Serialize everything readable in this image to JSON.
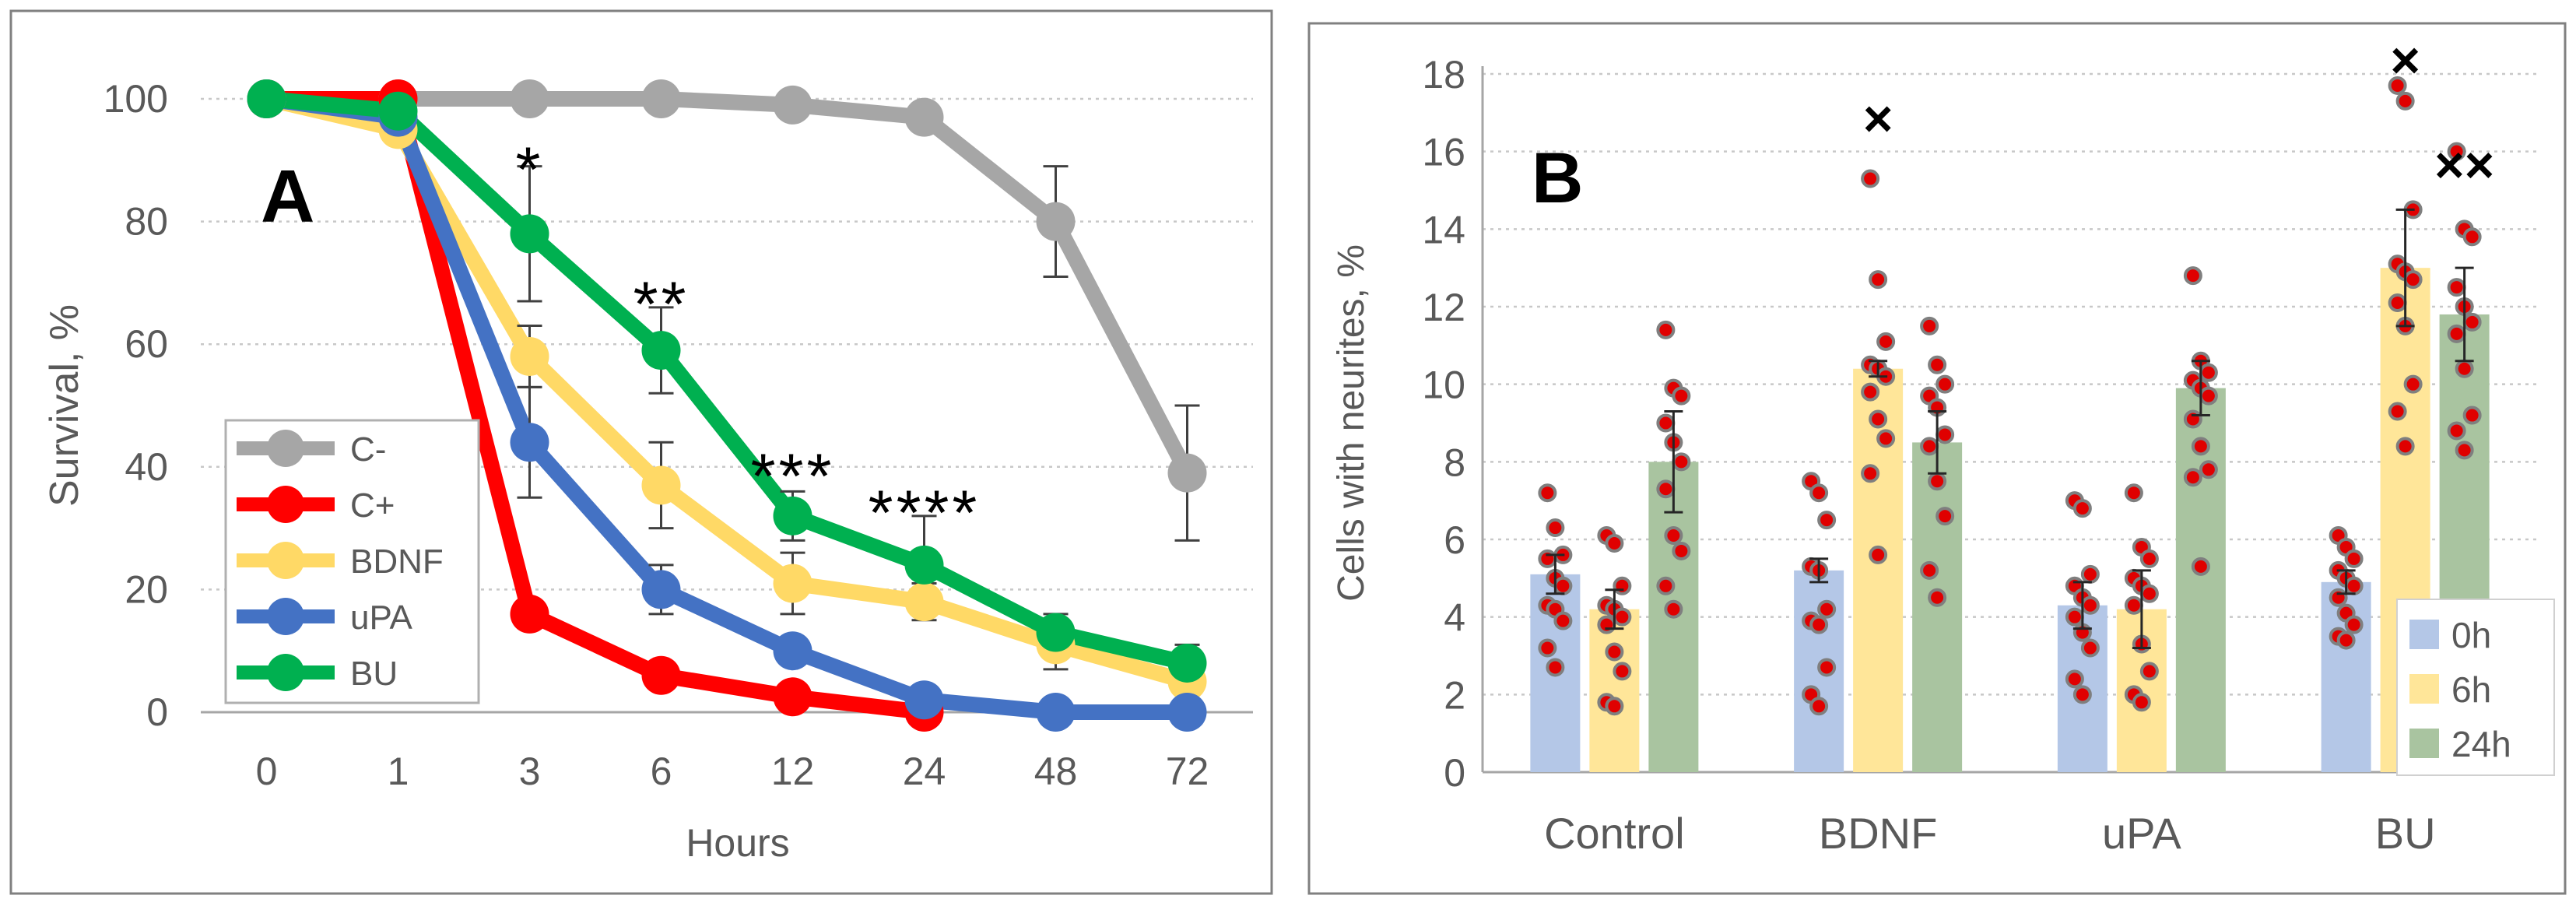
{
  "chart_data": [
    {
      "type": "line",
      "panel": "A",
      "xlabel": "Hours",
      "ylabel": "Survival, %",
      "categories": [
        "0",
        "1",
        "3",
        "6",
        "12",
        "24",
        "48",
        "72"
      ],
      "ylim": [
        0,
        100
      ],
      "yticks": [
        0,
        20,
        40,
        60,
        80,
        100
      ],
      "grid": true,
      "legend": "left",
      "series": [
        {
          "name": "C-",
          "color": "#a6a6a6",
          "values": [
            100,
            100,
            100,
            100,
            99,
            97,
            80,
            39
          ],
          "err": [
            0,
            0,
            0,
            0,
            2,
            2,
            9,
            11
          ]
        },
        {
          "name": "C+",
          "color": "#ff0000",
          "values": [
            100,
            100,
            16,
            6,
            2.5,
            0,
            null,
            null
          ],
          "err": [
            0,
            0,
            0,
            0,
            0,
            0,
            0,
            0
          ]
        },
        {
          "name": "BDNF",
          "color": "#ffd966",
          "values": [
            100,
            95,
            58,
            37,
            21,
            18,
            11,
            5
          ],
          "err": [
            0,
            0,
            5,
            7,
            5,
            3,
            4,
            2
          ]
        },
        {
          "name": "uPA",
          "color": "#4472c4",
          "values": [
            100,
            97,
            44,
            20,
            10,
            2,
            0,
            0
          ],
          "err": [
            0,
            0,
            9,
            4,
            2,
            1,
            0,
            0
          ]
        },
        {
          "name": "BU",
          "color": "#00b050",
          "values": [
            100,
            98,
            78,
            59,
            32,
            24,
            13,
            8
          ],
          "err": [
            0,
            0,
            11,
            7,
            4,
            8,
            3,
            3
          ]
        }
      ],
      "annotations": [
        {
          "text": "A",
          "kind": "panel-label"
        },
        {
          "text": "*",
          "category": "3",
          "value": 90
        },
        {
          "text": "**",
          "category": "6",
          "value": 68
        },
        {
          "text": "***",
          "category": "12",
          "value": 40
        },
        {
          "text": "****",
          "category": "24",
          "value": 34
        }
      ]
    },
    {
      "type": "bar",
      "panel": "B",
      "xlabel": "",
      "ylabel": "Cells with neurites, %",
      "categories": [
        "Control",
        "BDNF",
        "uPA",
        "BU"
      ],
      "ylim": [
        0,
        18
      ],
      "yticks": [
        0,
        2,
        4,
        6,
        8,
        10,
        12,
        14,
        16,
        18
      ],
      "grid": true,
      "legend": "bottom-right",
      "series": [
        {
          "name": "0h",
          "color": "#b4c7e7",
          "values": [
            5.1,
            5.2,
            4.3,
            4.9
          ],
          "err": [
            0.5,
            0.3,
            0.6,
            0.3
          ],
          "points": [
            [
              7.2,
              6.3,
              5.6,
              5.5,
              5.0,
              4.8,
              4.3,
              4.2,
              3.9,
              3.2,
              2.7
            ],
            [
              7.5,
              7.2,
              6.5,
              5.3,
              5.2,
              4.2,
              3.9,
              3.8,
              2.7,
              2.0,
              1.7
            ],
            [
              7.0,
              6.8,
              5.1,
              4.8,
              4.5,
              4.3,
              4.0,
              3.6,
              3.2,
              2.4,
              2.0
            ],
            [
              6.1,
              5.8,
              5.5,
              5.2,
              5.0,
              4.8,
              4.5,
              4.1,
              3.8,
              3.5,
              3.4
            ]
          ]
        },
        {
          "name": "6h",
          "color": "#ffe699",
          "values": [
            4.2,
            10.4,
            4.2,
            13.0
          ],
          "err": [
            0.5,
            0.2,
            1.0,
            1.5
          ],
          "points": [
            [
              6.1,
              5.9,
              4.8,
              4.3,
              4.2,
              4.0,
              3.8,
              3.1,
              2.6,
              1.8,
              1.7
            ],
            [
              15.3,
              12.7,
              11.1,
              10.5,
              10.4,
              10.2,
              9.8,
              9.1,
              8.6,
              7.7,
              5.6
            ],
            [
              7.2,
              5.8,
              5.5,
              5.0,
              4.8,
              4.6,
              4.3,
              3.3,
              2.6,
              2.0,
              1.8
            ],
            [
              17.7,
              17.3,
              14.5,
              13.1,
              12.9,
              12.7,
              12.1,
              11.5,
              10.0,
              9.3,
              8.4
            ]
          ]
        },
        {
          "name": "24h",
          "color": "#a9c4a0",
          "values": [
            8.0,
            8.5,
            9.9,
            11.8
          ],
          "err": [
            1.3,
            0.8,
            0.7,
            1.2
          ],
          "points": [
            [
              11.4,
              9.9,
              9.7,
              9.0,
              8.5,
              8.0,
              7.3,
              6.1,
              5.7,
              4.8,
              4.2
            ],
            [
              11.5,
              10.5,
              10.0,
              9.7,
              9.4,
              8.7,
              8.4,
              7.5,
              6.6,
              5.2,
              4.5
            ],
            [
              12.8,
              10.6,
              10.3,
              10.1,
              9.9,
              9.7,
              9.1,
              8.4,
              7.8,
              7.6,
              5.3
            ],
            [
              16.0,
              14.0,
              13.8,
              12.5,
              12.0,
              11.6,
              11.3,
              10.4,
              9.2,
              8.8,
              8.3
            ]
          ]
        }
      ],
      "annotations": [
        {
          "text": "B",
          "kind": "panel-label"
        },
        {
          "text": "×",
          "category": "BDNF",
          "series": "6h",
          "value": 16.8
        },
        {
          "text": "×",
          "category": "BU",
          "series": "6h",
          "value": 18.3
        },
        {
          "text": "××",
          "category": "BU",
          "series": "24h",
          "value": 15.6
        }
      ]
    }
  ]
}
